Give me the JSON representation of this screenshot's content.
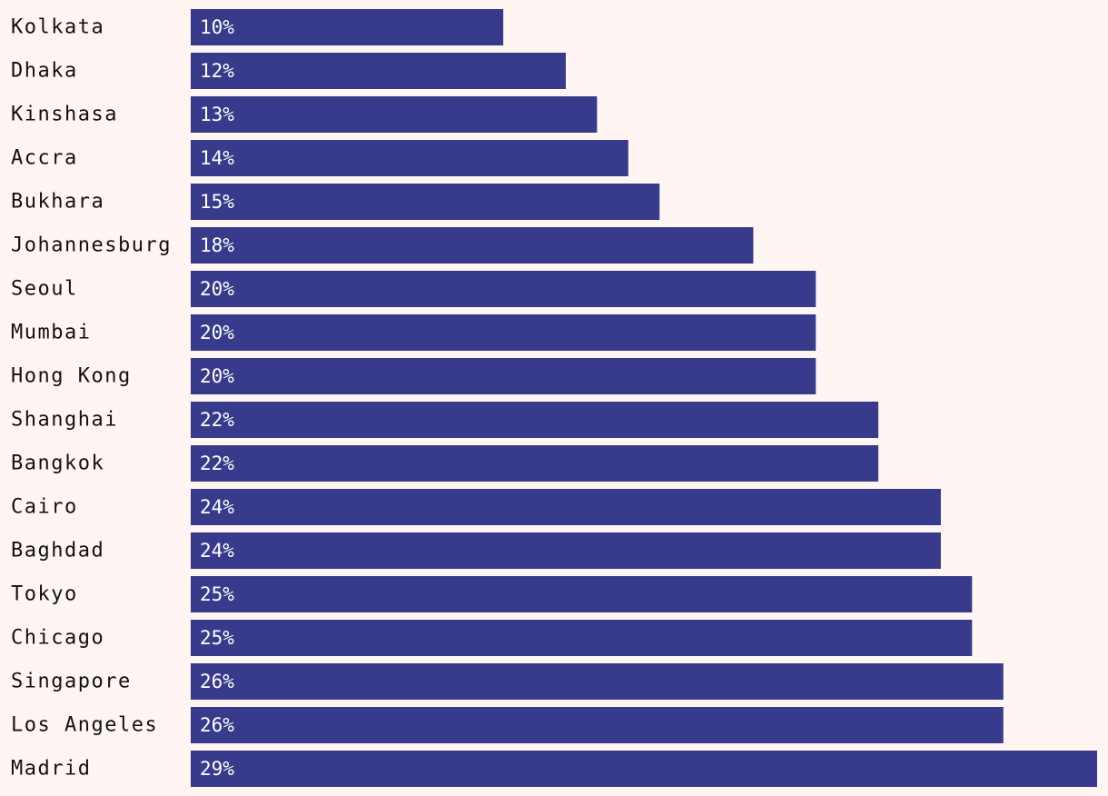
{
  "chart_data": {
    "type": "bar",
    "orientation": "horizontal",
    "categories": [
      "Kolkata",
      "Dhaka",
      "Kinshasa",
      "Accra",
      "Bukhara",
      "Johannesburg",
      "Seoul",
      "Mumbai",
      "Hong Kong",
      "Shanghai",
      "Bangkok",
      "Cairo",
      "Baghdad",
      "Tokyo",
      "Chicago",
      "Singapore",
      "Los Angeles",
      "Madrid"
    ],
    "values": [
      10,
      12,
      13,
      14,
      15,
      18,
      20,
      20,
      20,
      22,
      22,
      24,
      24,
      25,
      25,
      26,
      26,
      29
    ],
    "value_labels": [
      "10%",
      "12%",
      "13%",
      "14%",
      "15%",
      "18%",
      "20%",
      "20%",
      "20%",
      "22%",
      "22%",
      "24%",
      "24%",
      "25%",
      "25%",
      "26%",
      "26%",
      "29%"
    ],
    "unit": "%",
    "xlim": [
      0,
      29
    ],
    "grid": false,
    "legend": "none",
    "colors": {
      "bar": "#383a8c",
      "background": "#fff5f2",
      "label": "#111111",
      "value_label": "#ffffff"
    }
  }
}
